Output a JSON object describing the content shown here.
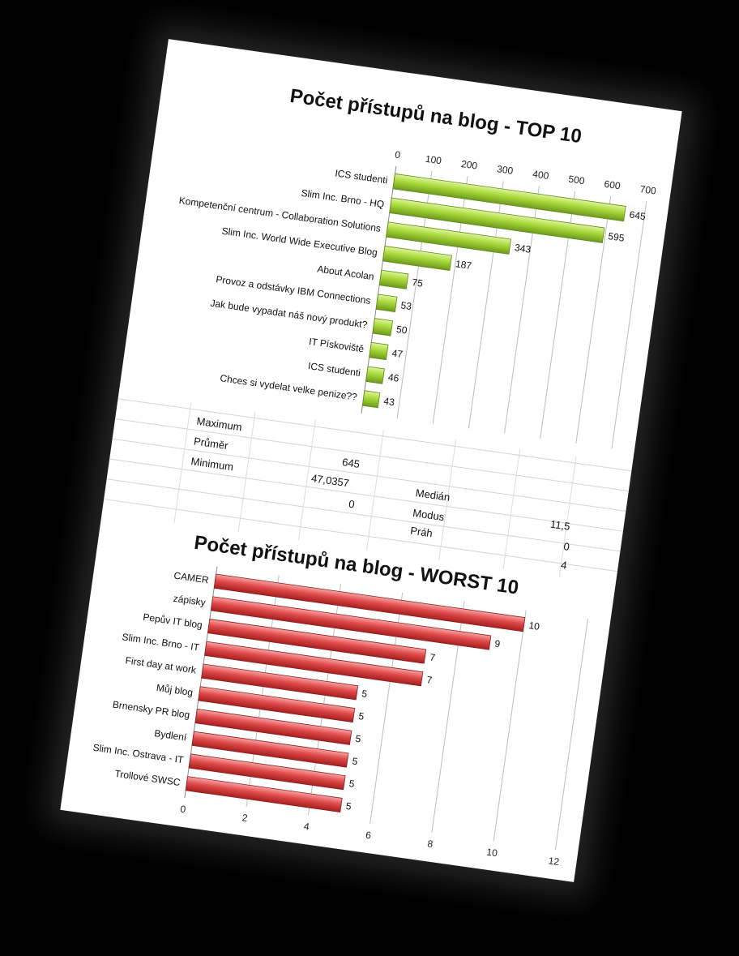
{
  "chart_data": [
    {
      "type": "bar",
      "title": "Počet přístupů na blog - TOP 10",
      "categories": [
        "ICS studenti",
        "Slim Inc. Brno - HQ",
        "Kompetenční centrum - Collaboration Solutions",
        "Slim Inc. World Wide Executive Blog",
        "About Acolan",
        "Provoz a odstávky IBM Connections",
        "Jak bude vypadat náš nový produkt?",
        "IT Pískoviště",
        "ICS studenti",
        "Chces si vydelat velke penize??"
      ],
      "values": [
        645,
        595,
        343,
        187,
        75,
        53,
        50,
        47,
        46,
        43
      ],
      "xlim": [
        0,
        700
      ],
      "xticks": [
        "0",
        "100",
        "200",
        "300",
        "400",
        "500",
        "600",
        "700"
      ],
      "axis_position": "top",
      "grid": true,
      "bar_color": "#9acd32"
    },
    {
      "type": "bar",
      "title": "Počet přístupů na blog - WORST 10",
      "categories": [
        "CAMER",
        "zápisky",
        "Pepův IT blog",
        "Slim Inc. Brno - IT",
        "First day at work",
        "Můj blog",
        "Brnensky PR blog",
        "Bydlení",
        "Slim Inc. Ostrava - IT",
        "Trollové SWSC"
      ],
      "values": [
        10,
        9,
        7,
        7,
        5,
        5,
        5,
        5,
        5,
        5
      ],
      "xlim": [
        0,
        12
      ],
      "xticks": [
        "0",
        "2",
        "4",
        "6",
        "8",
        "10",
        "12"
      ],
      "axis_position": "bottom",
      "grid": true,
      "bar_color": "#e04a4a"
    }
  ],
  "stats": {
    "maximum_label": "Maximum",
    "prumer_label": "Průměr",
    "minimum_label": "Minimum",
    "maximum_value": "645",
    "prumer_value": "47,0357",
    "minimum_value": "0",
    "median_label": "Medián",
    "modus_label": "Modus",
    "prah_label": "Práh",
    "median_value": "11,5",
    "modus_value": "0",
    "prah_value": "4"
  }
}
